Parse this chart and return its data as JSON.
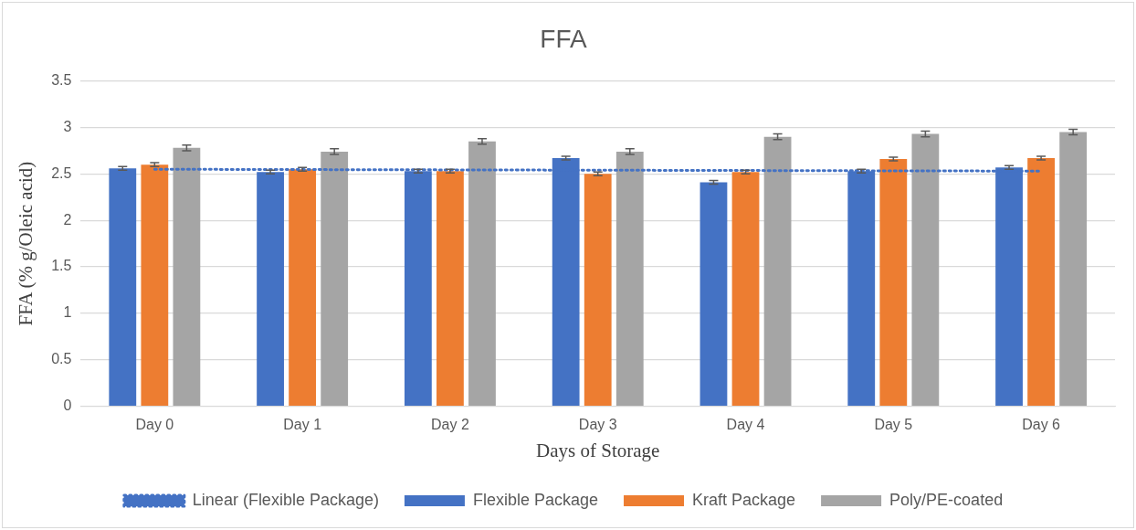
{
  "chart_data": {
    "type": "bar",
    "title": "FFA",
    "xlabel": "Days of Storage",
    "ylabel": "FFA (% g/Oleic acid)",
    "categories": [
      "Day 0",
      "Day 1",
      "Day 2",
      "Day 3",
      "Day 4",
      "Day 5",
      "Day 6"
    ],
    "series": [
      {
        "name": "Flexible Package",
        "color": "#4472c4",
        "values": [
          2.56,
          2.52,
          2.53,
          2.67,
          2.41,
          2.53,
          2.57
        ],
        "errors": [
          0.02,
          0.02,
          0.02,
          0.02,
          0.02,
          0.02,
          0.02
        ]
      },
      {
        "name": "Kraft Package",
        "color": "#ed7d31",
        "values": [
          2.6,
          2.55,
          2.53,
          2.5,
          2.52,
          2.66,
          2.67
        ],
        "errors": [
          0.02,
          0.02,
          0.02,
          0.02,
          0.02,
          0.02,
          0.02
        ]
      },
      {
        "name": "Poly/PE-coated",
        "color": "#a5a5a5",
        "values": [
          2.78,
          2.74,
          2.85,
          2.74,
          2.9,
          2.93,
          2.95
        ],
        "errors": [
          0.03,
          0.03,
          0.03,
          0.03,
          0.03,
          0.03,
          0.03
        ]
      },
      {
        "name": "Linear (Flexible Package)",
        "type": "line",
        "color": "#4472c4",
        "line_style": "dotted",
        "marker": "none",
        "x": [
          "Day 0",
          "Day 6"
        ],
        "values": [
          2.55,
          2.53
        ]
      }
    ],
    "ylim": [
      0,
      3.5
    ],
    "yticks": [
      0,
      0.5,
      1,
      1.5,
      2,
      2.5,
      3,
      3.5
    ],
    "grid": "y",
    "legend": "bottom"
  }
}
